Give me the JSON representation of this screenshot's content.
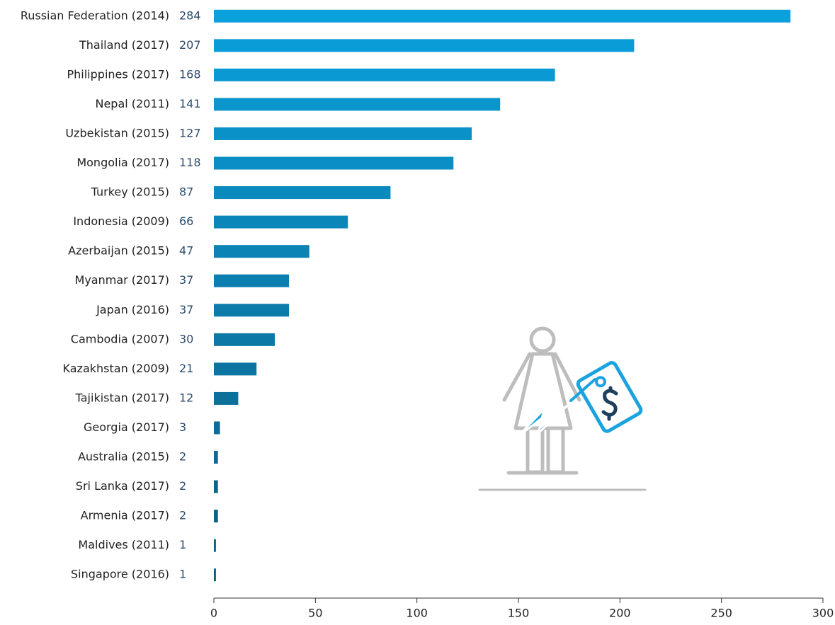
{
  "chart_data": {
    "type": "bar",
    "orientation": "horizontal",
    "categories": [
      "Russian Federation (2014)",
      "Thailand (2017)",
      "Philippines (2017)",
      "Nepal (2011)",
      "Uzbekistan (2015)",
      "Mongolia (2017)",
      "Turkey (2015)",
      "Indonesia (2009)",
      "Azerbaijan (2015)",
      "Myanmar (2017)",
      "Japan (2016)",
      "Cambodia (2007)",
      "Kazakhstan (2009)",
      "Tajikistan (2017)",
      "Georgia (2017)",
      "Australia (2015)",
      "Sri Lanka (2017)",
      "Armenia (2017)",
      "Maldives (2011)",
      "Singapore (2016)"
    ],
    "values": [
      284,
      207,
      168,
      141,
      127,
      118,
      87,
      66,
      47,
      37,
      37,
      30,
      21,
      12,
      3,
      2,
      2,
      2,
      1,
      1
    ],
    "colors": [
      "#0aa0dc",
      "#0a9cd7",
      "#0a99d2",
      "#0a95cd",
      "#0a91c8",
      "#0b8ec3",
      "#0b8abe",
      "#0b86b9",
      "#0b83b4",
      "#0b7faf",
      "#0c7baa",
      "#0c78a5",
      "#0c74a0",
      "#0c709b",
      "#0c6d96",
      "#0c6991",
      "#0d658c",
      "#0d6287",
      "#0d5e82",
      "#0d5a7e"
    ],
    "xlim": [
      0,
      300
    ],
    "xticks": [
      0,
      50,
      100,
      150,
      200,
      250,
      300
    ],
    "grid": false
  }
}
